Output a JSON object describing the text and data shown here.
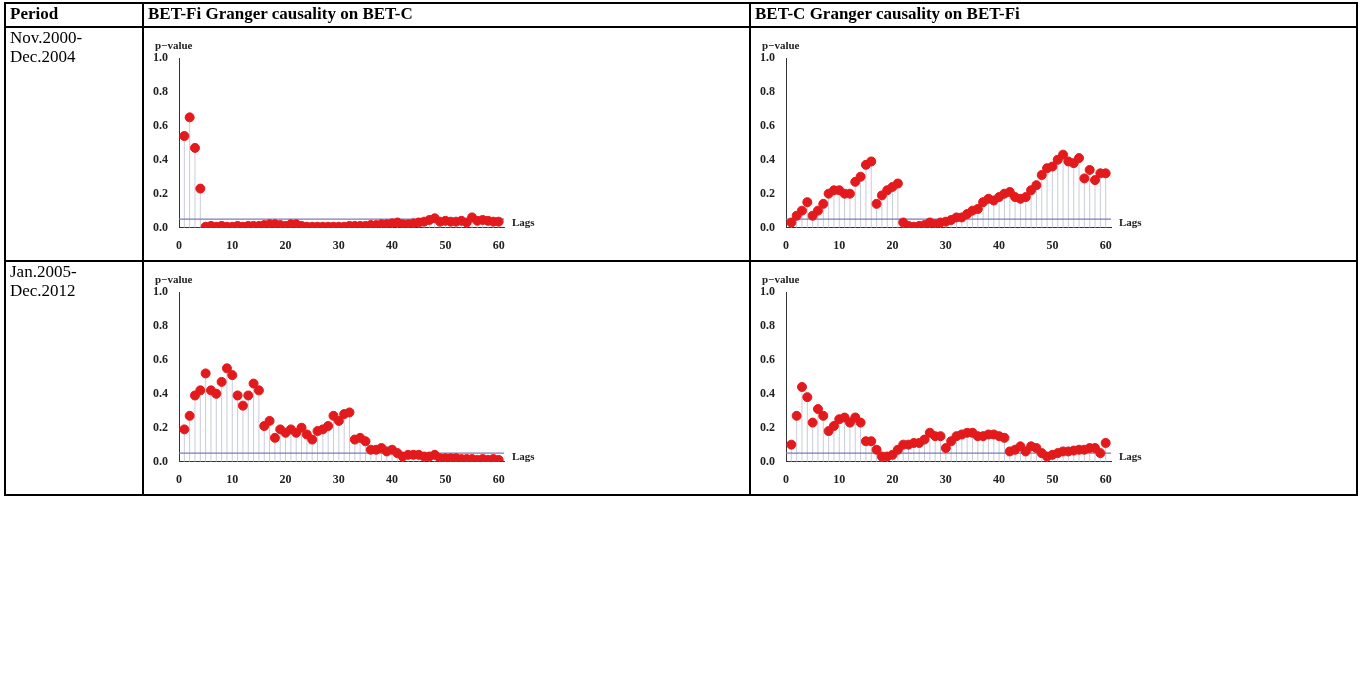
{
  "chart_data": [
    {
      "type": "lollipop",
      "title": "BET-Fi Granger causality on BET-C",
      "subtitle": "Nov.2000-Dec.2004",
      "annotations": [
        "Period"
      ],
      "xlabel": "Lags",
      "ylabel": "p−value",
      "marker": "circle",
      "color": "#e31a1c",
      "x": [
        1,
        2,
        3,
        4,
        5,
        6,
        7,
        8,
        9,
        10,
        11,
        12,
        13,
        14,
        15,
        16,
        17,
        18,
        19,
        20,
        21,
        22,
        23,
        24,
        25,
        26,
        27,
        28,
        29,
        30,
        31,
        32,
        33,
        34,
        35,
        36,
        37,
        38,
        39,
        40,
        41,
        42,
        43,
        44,
        45,
        46,
        47,
        48,
        49,
        50,
        51,
        52,
        53,
        54,
        55,
        56,
        57,
        58,
        59,
        60
      ],
      "values": [
        0.54,
        0.65,
        0.47,
        0.23,
        0.005,
        0.01,
        0.005,
        0.01,
        0.005,
        0.005,
        0.01,
        0.005,
        0.01,
        0.01,
        0.01,
        0.015,
        0.02,
        0.02,
        0.015,
        0.01,
        0.02,
        0.02,
        0.01,
        0.005,
        0.005,
        0.005,
        0.005,
        0.005,
        0.005,
        0.005,
        0.005,
        0.01,
        0.01,
        0.01,
        0.01,
        0.015,
        0.015,
        0.02,
        0.02,
        0.025,
        0.03,
        0.02,
        0.02,
        0.025,
        0.03,
        0.035,
        0.045,
        0.055,
        0.035,
        0.04,
        0.035,
        0.035,
        0.04,
        0.03,
        0.06,
        0.04,
        0.045,
        0.04,
        0.035,
        0.035
      ],
      "xlim": [
        0,
        61
      ],
      "xticks": [
        0,
        10,
        20,
        30,
        40,
        50,
        60
      ],
      "ylim": [
        0,
        1
      ],
      "yticks": [
        {
          "value": 0,
          "label": "0.0"
        },
        {
          "value": 0.2,
          "label": "0.2"
        },
        {
          "value": 0.4,
          "label": "0.4"
        },
        {
          "value": 0.6,
          "label": "0.6"
        },
        {
          "value": 0.8,
          "label": "0.8"
        },
        {
          "value": 1,
          "label": "1.0"
        }
      ],
      "ref_lines": [
        {
          "axis": "y",
          "value": 0.05,
          "color": "#7b7bbf"
        }
      ]
    },
    {
      "type": "lollipop",
      "title": "BET-C Granger causality on BET-Fi",
      "xlabel": "Lags",
      "ylabel": "p−value",
      "marker": "circle",
      "color": "#e31a1c",
      "x": [
        1,
        2,
        3,
        4,
        5,
        6,
        7,
        8,
        9,
        10,
        11,
        12,
        13,
        14,
        15,
        16,
        17,
        18,
        19,
        20,
        21,
        22,
        23,
        24,
        25,
        26,
        27,
        28,
        29,
        30,
        31,
        32,
        33,
        34,
        35,
        36,
        37,
        38,
        39,
        40,
        41,
        42,
        43,
        44,
        45,
        46,
        47,
        48,
        49,
        50,
        51,
        52,
        53,
        54,
        55,
        56,
        57,
        58,
        59,
        60
      ],
      "values": [
        0.03,
        0.07,
        0.1,
        0.15,
        0.07,
        0.1,
        0.14,
        0.2,
        0.22,
        0.22,
        0.2,
        0.2,
        0.27,
        0.3,
        0.37,
        0.39,
        0.14,
        0.19,
        0.22,
        0.24,
        0.26,
        0.03,
        0.01,
        0.005,
        0.01,
        0.015,
        0.03,
        0.02,
        0.03,
        0.035,
        0.045,
        0.06,
        0.06,
        0.08,
        0.1,
        0.11,
        0.15,
        0.17,
        0.16,
        0.18,
        0.2,
        0.21,
        0.18,
        0.17,
        0.18,
        0.22,
        0.25,
        0.31,
        0.35,
        0.36,
        0.4,
        0.43,
        0.39,
        0.38,
        0.41,
        0.29,
        0.34,
        0.28,
        0.32,
        0.32
      ],
      "xlim": [
        0,
        61
      ],
      "xticks": [
        0,
        10,
        20,
        30,
        40,
        50,
        60
      ],
      "ylim": [
        0,
        1
      ],
      "yticks": [
        {
          "value": 0,
          "label": "0.0"
        },
        {
          "value": 0.2,
          "label": "0.2"
        },
        {
          "value": 0.4,
          "label": "0.4"
        },
        {
          "value": 0.6,
          "label": "0.6"
        },
        {
          "value": 0.8,
          "label": "0.8"
        },
        {
          "value": 1,
          "label": "1.0"
        }
      ],
      "ref_lines": [
        {
          "axis": "y",
          "value": 0.05,
          "color": "#7b7bbf"
        }
      ]
    },
    {
      "type": "lollipop",
      "subtitle": "Jan.2005-Dec.2012",
      "xlabel": "Lags",
      "ylabel": "p−value",
      "marker": "circle",
      "color": "#e31a1c",
      "x": [
        1,
        2,
        3,
        4,
        5,
        6,
        7,
        8,
        9,
        10,
        11,
        12,
        13,
        14,
        15,
        16,
        17,
        18,
        19,
        20,
        21,
        22,
        23,
        24,
        25,
        26,
        27,
        28,
        29,
        30,
        31,
        32,
        33,
        34,
        35,
        36,
        37,
        38,
        39,
        40,
        41,
        42,
        43,
        44,
        45,
        46,
        47,
        48,
        49,
        50,
        51,
        52,
        53,
        54,
        55,
        56,
        57,
        58,
        59,
        60
      ],
      "values": [
        0.19,
        0.27,
        0.39,
        0.42,
        0.52,
        0.42,
        0.4,
        0.47,
        0.55,
        0.51,
        0.39,
        0.33,
        0.39,
        0.46,
        0.42,
        0.21,
        0.24,
        0.14,
        0.19,
        0.17,
        0.19,
        0.17,
        0.2,
        0.16,
        0.13,
        0.18,
        0.19,
        0.21,
        0.27,
        0.24,
        0.28,
        0.29,
        0.13,
        0.14,
        0.12,
        0.07,
        0.07,
        0.08,
        0.06,
        0.07,
        0.05,
        0.03,
        0.04,
        0.04,
        0.04,
        0.03,
        0.03,
        0.04,
        0.02,
        0.02,
        0.02,
        0.02,
        0.015,
        0.015,
        0.015,
        0.01,
        0.015,
        0.01,
        0.015,
        0.01
      ],
      "xlim": [
        0,
        61
      ],
      "xticks": [
        0,
        10,
        20,
        30,
        40,
        50,
        60
      ],
      "ylim": [
        0,
        1
      ],
      "yticks": [
        {
          "value": 0,
          "label": "0.0"
        },
        {
          "value": 0.2,
          "label": "0.2"
        },
        {
          "value": 0.4,
          "label": "0.4"
        },
        {
          "value": 0.6,
          "label": "0.6"
        },
        {
          "value": 0.8,
          "label": "0.8"
        },
        {
          "value": 1,
          "label": "1.0"
        }
      ],
      "ref_lines": [
        {
          "axis": "y",
          "value": 0.05,
          "color": "#7b7bbf"
        }
      ]
    },
    {
      "type": "lollipop",
      "xlabel": "Lags",
      "ylabel": "p−value",
      "marker": "circle",
      "color": "#e31a1c",
      "x": [
        1,
        2,
        3,
        4,
        5,
        6,
        7,
        8,
        9,
        10,
        11,
        12,
        13,
        14,
        15,
        16,
        17,
        18,
        19,
        20,
        21,
        22,
        23,
        24,
        25,
        26,
        27,
        28,
        29,
        30,
        31,
        32,
        33,
        34,
        35,
        36,
        37,
        38,
        39,
        40,
        41,
        42,
        43,
        44,
        45,
        46,
        47,
        48,
        49,
        50,
        51,
        52,
        53,
        54,
        55,
        56,
        57,
        58,
        59,
        60
      ],
      "values": [
        0.1,
        0.27,
        0.44,
        0.38,
        0.23,
        0.31,
        0.27,
        0.18,
        0.21,
        0.25,
        0.26,
        0.23,
        0.26,
        0.23,
        0.12,
        0.12,
        0.07,
        0.03,
        0.03,
        0.04,
        0.07,
        0.1,
        0.1,
        0.11,
        0.11,
        0.13,
        0.17,
        0.15,
        0.15,
        0.08,
        0.12,
        0.15,
        0.16,
        0.17,
        0.17,
        0.15,
        0.15,
        0.16,
        0.16,
        0.15,
        0.14,
        0.06,
        0.07,
        0.09,
        0.06,
        0.09,
        0.08,
        0.05,
        0.03,
        0.04,
        0.05,
        0.06,
        0.06,
        0.065,
        0.07,
        0.07,
        0.08,
        0.08,
        0.05,
        0.11
      ],
      "xlim": [
        0,
        61
      ],
      "xticks": [
        0,
        10,
        20,
        30,
        40,
        50,
        60
      ],
      "ylim": [
        0,
        1
      ],
      "yticks": [
        {
          "value": 0,
          "label": "0.0"
        },
        {
          "value": 0.2,
          "label": "0.2"
        },
        {
          "value": 0.4,
          "label": "0.4"
        },
        {
          "value": 0.6,
          "label": "0.6"
        },
        {
          "value": 0.8,
          "label": "0.8"
        },
        {
          "value": 1,
          "label": "1.0"
        }
      ],
      "ref_lines": [
        {
          "axis": "y",
          "value": 0.05,
          "color": "#7b7bbf"
        }
      ]
    }
  ]
}
